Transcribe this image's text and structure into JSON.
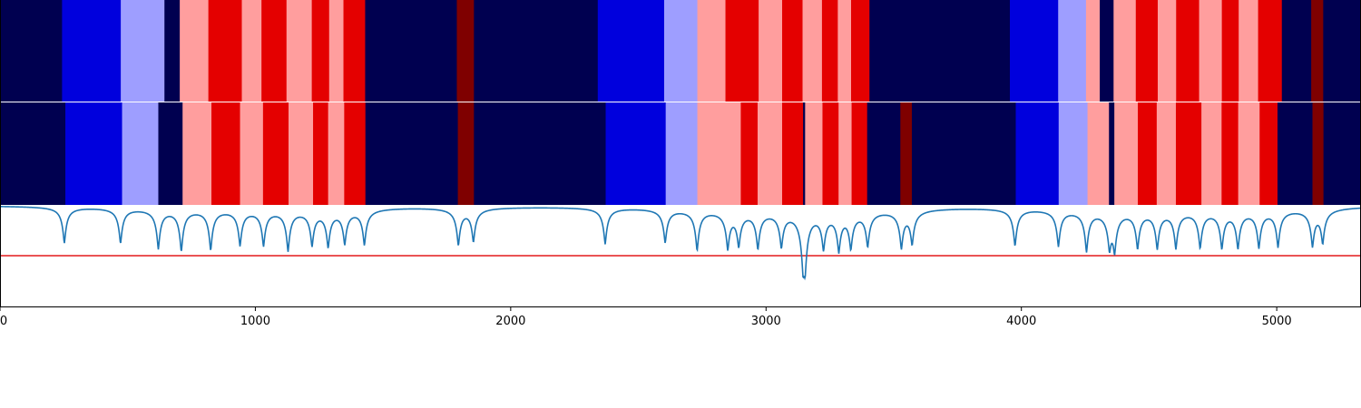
{
  "chart_data": {
    "type": "heatmap",
    "x_range": [
      0,
      5330
    ],
    "x_ticks": [
      {
        "value": 0,
        "label": "0"
      },
      {
        "value": 1000,
        "label": "1000"
      },
      {
        "value": 2000,
        "label": "2000"
      },
      {
        "value": 3000,
        "label": "3000"
      },
      {
        "value": 4000,
        "label": "4000"
      },
      {
        "value": 5000,
        "label": "5000"
      }
    ],
    "palette": {
      "0": "#000050",
      "1": "#0000dd",
      "2": "#9e9eff",
      "3": "#ff9e9e",
      "4": "#e40000",
      "5": "#7f0000"
    },
    "segmentation_rows": [
      {
        "breakpoints": [
          0,
          243,
          473,
          644,
          704,
          816,
          947,
          1024,
          1122,
          1221,
          1289,
          1345,
          1430,
          1789,
          1856,
          2341,
          2601,
          2731,
          2841,
          2971,
          3063,
          3143,
          3219,
          3281,
          3333,
          3405,
          3497,
          3955,
          4144,
          4253,
          4307,
          4361,
          4448,
          4534,
          4606,
          4696,
          4785,
          4851,
          4927,
          5020,
          5135,
          5182,
          5330
        ],
        "labels": [
          0,
          1,
          2,
          0,
          3,
          4,
          3,
          4,
          3,
          4,
          3,
          4,
          0,
          5,
          0,
          1,
          2,
          3,
          4,
          3,
          4,
          3,
          4,
          3,
          4,
          0,
          0,
          1,
          2,
          3,
          0,
          3,
          4,
          3,
          4,
          3,
          4,
          3,
          4,
          0,
          5,
          0
        ]
      },
      {
        "breakpoints": [
          0,
          256,
          478,
          620,
          715,
          828,
          940,
          1030,
          1130,
          1226,
          1285,
          1348,
          1431,
          1793,
          1856,
          2372,
          2607,
          2731,
          2901,
          2967,
          3063,
          3145,
          3153,
          3221,
          3284,
          3335,
          3396,
          3526,
          3571,
          3978,
          4146,
          4259,
          4343,
          4364,
          4456,
          4530,
          4605,
          4705,
          4784,
          4849,
          4933,
          5003,
          5140,
          5183,
          5330
        ],
        "labels": [
          0,
          1,
          2,
          0,
          3,
          4,
          3,
          4,
          3,
          4,
          3,
          4,
          0,
          5,
          0,
          1,
          2,
          3,
          4,
          3,
          4,
          0,
          3,
          4,
          3,
          4,
          0,
          5,
          0,
          1,
          2,
          3,
          0,
          3,
          4,
          3,
          4,
          3,
          4,
          3,
          4,
          0,
          5,
          0
        ]
      }
    ],
    "score_line": {
      "color": "#1f77b4",
      "baseline": 1.0,
      "y_range": [
        -1.0,
        1.0
      ],
      "dips": [
        {
          "x": 252,
          "depth": 0.72
        },
        {
          "x": 472,
          "depth": 0.7
        },
        {
          "x": 620,
          "depth": 0.78
        },
        {
          "x": 710,
          "depth": 0.82
        },
        {
          "x": 825,
          "depth": 0.8
        },
        {
          "x": 940,
          "depth": 0.7
        },
        {
          "x": 1032,
          "depth": 0.7
        },
        {
          "x": 1128,
          "depth": 0.8
        },
        {
          "x": 1222,
          "depth": 0.68
        },
        {
          "x": 1285,
          "depth": 0.7
        },
        {
          "x": 1350,
          "depth": 0.65
        },
        {
          "x": 1427,
          "depth": 0.7
        },
        {
          "x": 1795,
          "depth": 0.72
        },
        {
          "x": 1854,
          "depth": 0.65
        },
        {
          "x": 2370,
          "depth": 0.72
        },
        {
          "x": 2605,
          "depth": 0.67
        },
        {
          "x": 2730,
          "depth": 0.8
        },
        {
          "x": 2850,
          "depth": 0.72
        },
        {
          "x": 2893,
          "depth": 0.65
        },
        {
          "x": 2968,
          "depth": 0.72
        },
        {
          "x": 3060,
          "depth": 0.68
        },
        {
          "x": 3145,
          "depth": 0.82
        },
        {
          "x": 3153,
          "depth": 0.84
        },
        {
          "x": 3225,
          "depth": 0.68
        },
        {
          "x": 3285,
          "depth": 0.72
        },
        {
          "x": 3332,
          "depth": 0.68
        },
        {
          "x": 3398,
          "depth": 0.68
        },
        {
          "x": 3530,
          "depth": 0.72
        },
        {
          "x": 3572,
          "depth": 0.65
        },
        {
          "x": 3975,
          "depth": 0.74
        },
        {
          "x": 4145,
          "depth": 0.72
        },
        {
          "x": 4255,
          "depth": 0.8
        },
        {
          "x": 4345,
          "depth": 0.65
        },
        {
          "x": 4365,
          "depth": 0.7
        },
        {
          "x": 4455,
          "depth": 0.72
        },
        {
          "x": 4532,
          "depth": 0.72
        },
        {
          "x": 4605,
          "depth": 0.72
        },
        {
          "x": 4700,
          "depth": 0.72
        },
        {
          "x": 4785,
          "depth": 0.72
        },
        {
          "x": 4848,
          "depth": 0.72
        },
        {
          "x": 4930,
          "depth": 0.72
        },
        {
          "x": 5005,
          "depth": 0.72
        },
        {
          "x": 5140,
          "depth": 0.7
        },
        {
          "x": 5180,
          "depth": 0.65
        }
      ]
    },
    "threshold": {
      "value": 0.0,
      "color": "#e41a1c"
    },
    "grid": false,
    "title": "",
    "xlabel": "",
    "ylabel": ""
  }
}
